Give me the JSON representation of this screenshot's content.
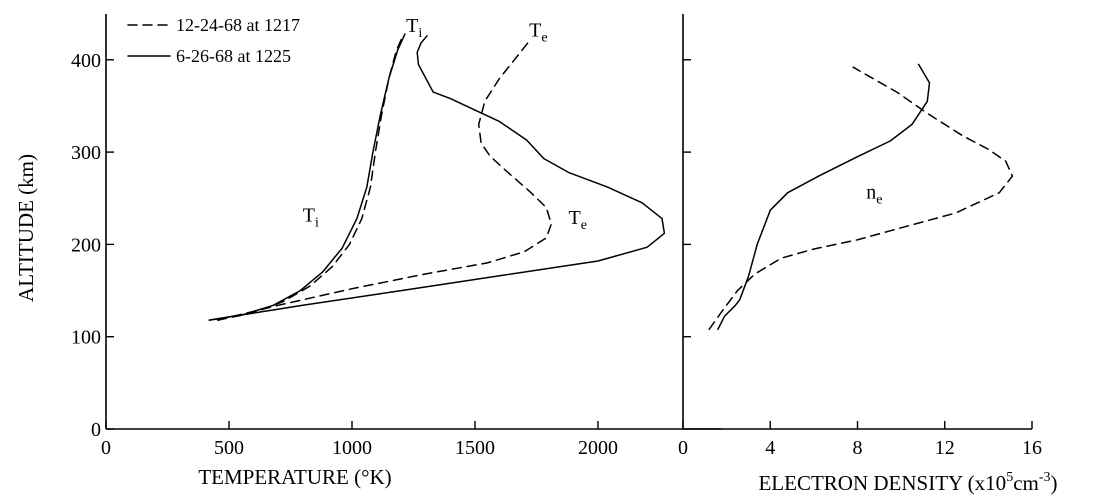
{
  "chart_data": [
    {
      "type": "line",
      "title": "",
      "xlabel": "TEMPERATURE (°K)",
      "ylabel": "ALTITUDE (km)",
      "xlim": [
        0,
        2500
      ],
      "ylim": [
        0,
        450
      ],
      "x_ticks": [
        "0",
        "500",
        "1000",
        "1500",
        "2000"
      ],
      "y_ticks": [
        "0",
        "100",
        "200",
        "300",
        "400"
      ],
      "legend": {
        "position": "top-left",
        "entries": [
          "12-24-68 at 1217",
          "6-26-68 at 1225"
        ]
      },
      "grid": false,
      "curve_labels": [
        {
          "text": "T",
          "sub": "i",
          "x": 1220,
          "y": 430
        },
        {
          "text": "T",
          "sub": "e",
          "x": 1720,
          "y": 425
        },
        {
          "text": "T",
          "sub": "i",
          "x": 800,
          "y": 225
        },
        {
          "text": "T",
          "sub": "e",
          "x": 1880,
          "y": 222
        }
      ],
      "series": [
        {
          "name": "12-24-68 at 1217",
          "style": "dashed",
          "curves": [
            {
              "label": "Ti",
              "points": [
                [
                  455,
                  118
                ],
                [
                  600,
                  126
                ],
                [
                  720,
                  138
                ],
                [
                  830,
                  155
                ],
                [
                  920,
                  176
                ],
                [
                  990,
                  200
                ],
                [
                  1040,
                  228
                ],
                [
                  1075,
                  262
                ],
                [
                  1095,
                  300
                ],
                [
                  1120,
                  340
                ],
                [
                  1150,
                  380
                ],
                [
                  1180,
                  410
                ],
                [
                  1205,
                  425
                ]
              ]
            },
            {
              "label": "Te",
              "points": [
                [
                  455,
                  118
                ],
                [
                  700,
                  134
                ],
                [
                  1000,
                  152
                ],
                [
                  1300,
                  168
                ],
                [
                  1550,
                  180
                ],
                [
                  1700,
                  192
                ],
                [
                  1790,
                  207
                ],
                [
                  1810,
                  222
                ],
                [
                  1790,
                  240
                ],
                [
                  1720,
                  258
                ],
                [
                  1625,
                  280
                ],
                [
                  1560,
                  296
                ],
                [
                  1525,
                  310
                ],
                [
                  1515,
                  330
                ],
                [
                  1540,
                  355
                ],
                [
                  1600,
                  380
                ],
                [
                  1660,
                  400
                ],
                [
                  1720,
                  420
                ]
              ]
            }
          ]
        },
        {
          "name": "6-26-68 at 1225",
          "style": "solid",
          "curves": [
            {
              "label": "Ti",
              "points": [
                [
                  420,
                  118
                ],
                [
                  560,
                  124
                ],
                [
                  680,
                  134
                ],
                [
                  790,
                  150
                ],
                [
                  880,
                  170
                ],
                [
                  960,
                  196
                ],
                [
                  1020,
                  228
                ],
                [
                  1060,
                  262
                ],
                [
                  1085,
                  300
                ],
                [
                  1115,
                  340
                ],
                [
                  1150,
                  380
                ],
                [
                  1185,
                  410
                ],
                [
                  1215,
                  428
                ]
              ]
            },
            {
              "label": "Te",
              "points": [
                [
                  420,
                  118
                ],
                [
                  800,
                  134
                ],
                [
                  1200,
                  150
                ],
                [
                  1600,
                  166
                ],
                [
                  2000,
                  182
                ],
                [
                  2200,
                  197
                ],
                [
                  2270,
                  212
                ],
                [
                  2260,
                  228
                ],
                [
                  2180,
                  245
                ],
                [
                  2040,
                  262
                ],
                [
                  1880,
                  278
                ],
                [
                  1780,
                  293
                ],
                [
                  1710,
                  313
                ],
                [
                  1600,
                  333
                ],
                [
                  1480,
                  348
                ],
                [
                  1400,
                  358
                ],
                [
                  1330,
                  365
                ],
                [
                  1300,
                  380
                ],
                [
                  1270,
                  395
                ],
                [
                  1265,
                  408
                ],
                [
                  1280,
                  418
                ],
                [
                  1305,
                  426
                ]
              ]
            }
          ]
        }
      ]
    },
    {
      "type": "line",
      "title": "",
      "xlabel": "ELECTRON DENSITY (x10⁵cm⁻³)",
      "ylabel": "",
      "xlim": [
        0,
        16
      ],
      "ylim": [
        0,
        450
      ],
      "x_ticks": [
        "0",
        "4",
        "8",
        "12",
        "16"
      ],
      "grid": false,
      "curve_labels": [
        {
          "text": "n",
          "sub": "e",
          "x": 8.4,
          "y": 250
        }
      ],
      "series": [
        {
          "name": "12-24-68 at 1217",
          "style": "dashed",
          "points": [
            [
              1.2,
              108
            ],
            [
              1.8,
              128
            ],
            [
              2.5,
              150
            ],
            [
              3.3,
              168
            ],
            [
              4.5,
              185
            ],
            [
              6.0,
              195
            ],
            [
              8.0,
              205
            ],
            [
              10.0,
              218
            ],
            [
              12.5,
              234
            ],
            [
              14.5,
              256
            ],
            [
              15.1,
              274
            ],
            [
              14.8,
              290
            ],
            [
              14.0,
              303
            ],
            [
              12.8,
              318
            ],
            [
              11.2,
              342
            ],
            [
              9.8,
              365
            ],
            [
              7.8,
              392
            ]
          ]
        },
        {
          "name": "6-26-68 at 1225",
          "style": "solid",
          "points": [
            [
              1.6,
              108
            ],
            [
              1.9,
              122
            ],
            [
              2.4,
              134
            ],
            [
              2.6,
              140
            ],
            [
              3.0,
              165
            ],
            [
              3.4,
              200
            ],
            [
              4.0,
              237
            ],
            [
              4.8,
              256
            ],
            [
              6.3,
              275
            ],
            [
              8.0,
              295
            ],
            [
              9.5,
              312
            ],
            [
              10.5,
              330
            ],
            [
              11.2,
              355
            ],
            [
              11.3,
              375
            ],
            [
              10.8,
              395
            ]
          ]
        }
      ]
    }
  ]
}
